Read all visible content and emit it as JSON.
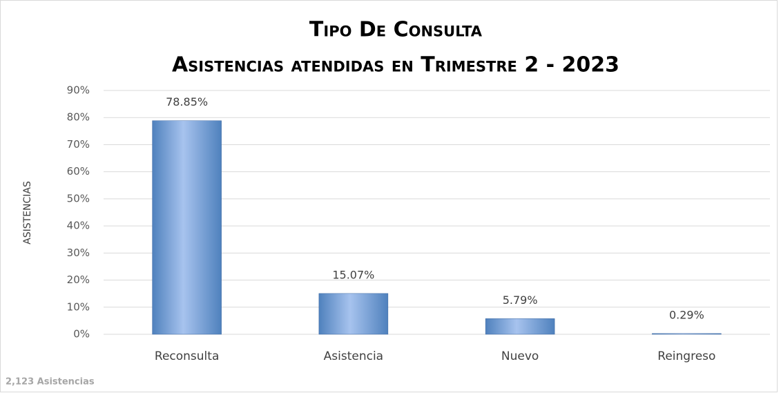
{
  "chart_data": {
    "type": "bar",
    "title": "Tipo De Consulta",
    "subtitle": "Asistencias atendidas en Trimestre 2  -  2023",
    "y_label": "ASISTENCIAS",
    "categories": [
      "Reconsulta",
      "Asistencia",
      "Nuevo",
      "Reingreso"
    ],
    "values": [
      78.85,
      15.07,
      5.79,
      0.29
    ],
    "value_labels": [
      "78.85%",
      "15.07%",
      "5.79%",
      "0.29%"
    ],
    "color": "#4f81bd",
    "ylim": [
      0,
      90
    ],
    "yticks": [
      {
        "value": 0,
        "label": "0%"
      },
      {
        "value": 10,
        "label": "10%"
      },
      {
        "value": 20,
        "label": "20%"
      },
      {
        "value": 30,
        "label": "30%"
      },
      {
        "value": 40,
        "label": "40%"
      },
      {
        "value": 50,
        "label": "50%"
      },
      {
        "value": 60,
        "label": "60%"
      },
      {
        "value": 70,
        "label": "70%"
      },
      {
        "value": 80,
        "label": "80%"
      },
      {
        "value": 90,
        "label": "90%"
      }
    ],
    "grid": true,
    "annotations": [
      "2,123 Asistencias"
    ]
  }
}
